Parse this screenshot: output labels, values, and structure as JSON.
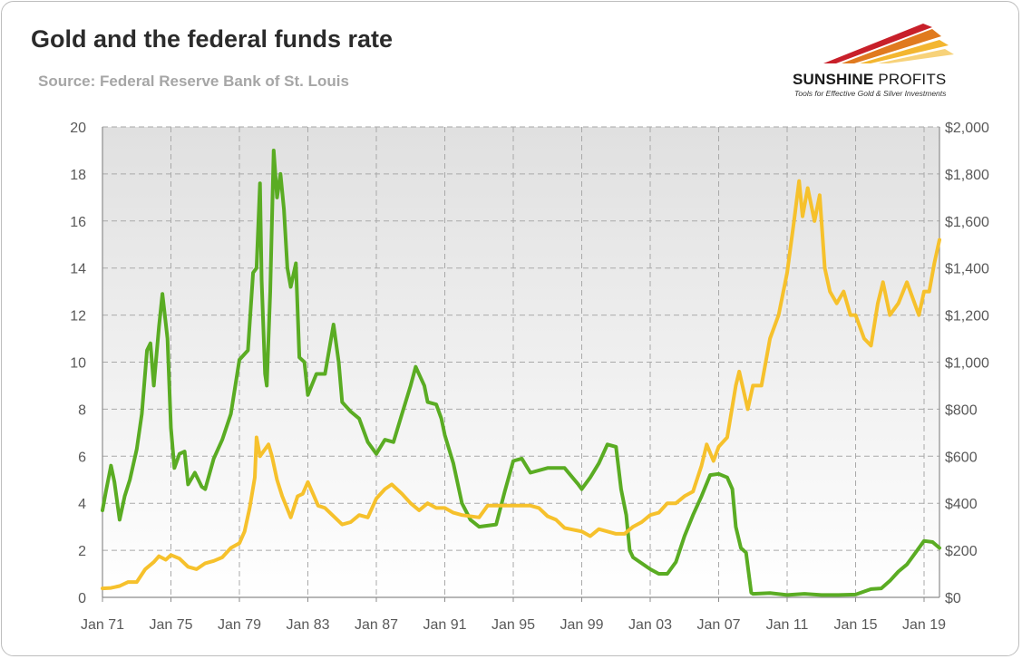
{
  "header": {
    "title": "Gold and the federal funds rate",
    "source": "Source: Federal Reserve Bank of St. Louis"
  },
  "logo": {
    "name_bold": "SUNSHINE",
    "name_light": " PROFITS",
    "tagline": "Tools for Effective Gold & Silver Investments"
  },
  "chart_data": {
    "type": "line",
    "title": "Gold and the federal funds rate",
    "xlim": [
      1971,
      2019.9
    ],
    "x_ticks": [
      "Jan 71",
      "Jan 75",
      "Jan 79",
      "Jan 83",
      "Jan 87",
      "Jan 91",
      "Jan 95",
      "Jan 99",
      "Jan 03",
      "Jan 07",
      "Jan 11",
      "Jan 15",
      "Jan 19"
    ],
    "x_tick_years": [
      1971,
      1975,
      1979,
      1983,
      1987,
      1991,
      1995,
      1999,
      2003,
      2007,
      2011,
      2015,
      2019
    ],
    "y_left": {
      "ylim": [
        0,
        20
      ],
      "ticks": [
        "0",
        "2",
        "4",
        "6",
        "8",
        "10",
        "12",
        "14",
        "16",
        "18",
        "20"
      ]
    },
    "y_right": {
      "ylim": [
        0,
        2000
      ],
      "ticks": [
        "$0",
        "$200",
        "$400",
        "$600",
        "$800",
        "$1,000",
        "$1,200",
        "$1,400",
        "$1,600",
        "$1,800",
        "$2,000"
      ]
    },
    "grid": true,
    "colors": {
      "fed_funds": "#5aac23",
      "gold": "#f6c12c",
      "plot_bg_top": "#e0e0e0",
      "plot_bg_bottom": "#ffffff"
    },
    "series": [
      {
        "axis": "left",
        "color": "#5aac23",
        "x": [
          1971.0,
          1971.2,
          1971.5,
          1971.7,
          1972.0,
          1972.3,
          1972.6,
          1973.0,
          1973.3,
          1973.6,
          1973.8,
          1974.0,
          1974.3,
          1974.5,
          1974.8,
          1975.0,
          1975.2,
          1975.5,
          1975.8,
          1976.0,
          1976.4,
          1976.8,
          1977.0,
          1977.5,
          1978.0,
          1978.5,
          1979.0,
          1979.5,
          1979.8,
          1980.0,
          1980.2,
          1980.3,
          1980.5,
          1980.6,
          1980.8,
          1981.0,
          1981.2,
          1981.4,
          1981.6,
          1981.8,
          1982.0,
          1982.3,
          1982.5,
          1982.8,
          1983.0,
          1983.5,
          1984.0,
          1984.5,
          1984.8,
          1985.0,
          1985.5,
          1986.0,
          1986.5,
          1987.0,
          1987.5,
          1988.0,
          1988.5,
          1989.0,
          1989.3,
          1989.8,
          1990.0,
          1990.5,
          1990.8,
          1991.0,
          1991.5,
          1992.0,
          1992.5,
          1993.0,
          1994.0,
          1994.5,
          1995.0,
          1995.5,
          1996.0,
          1997.0,
          1998.0,
          1998.8,
          1999.0,
          1999.5,
          2000.0,
          2000.5,
          2001.0,
          2001.3,
          2001.6,
          2001.8,
          2002.0,
          2003.0,
          2003.5,
          2004.0,
          2004.5,
          2005.0,
          2005.5,
          2006.0,
          2006.5,
          2007.0,
          2007.5,
          2007.8,
          2008.0,
          2008.3,
          2008.6,
          2008.9,
          2009.0,
          2010.0,
          2011.0,
          2012.0,
          2013.0,
          2014.0,
          2015.0,
          2015.9,
          2016.5,
          2017.0,
          2017.5,
          2018.0,
          2018.5,
          2019.0,
          2019.5,
          2019.9
        ],
        "values": [
          3.7,
          4.5,
          5.6,
          4.9,
          3.3,
          4.3,
          5.0,
          6.3,
          7.8,
          10.5,
          10.8,
          9.0,
          11.5,
          12.9,
          11.0,
          7.2,
          5.5,
          6.1,
          6.2,
          4.8,
          5.3,
          4.7,
          4.6,
          5.9,
          6.7,
          7.8,
          10.1,
          10.5,
          13.8,
          14.0,
          17.6,
          13.5,
          9.5,
          9.0,
          13.0,
          19.0,
          17.0,
          18.0,
          16.5,
          14.0,
          13.2,
          14.2,
          10.2,
          10.0,
          8.6,
          9.5,
          9.5,
          11.6,
          10.0,
          8.3,
          7.9,
          7.6,
          6.6,
          6.1,
          6.7,
          6.6,
          7.8,
          9.0,
          9.8,
          9.0,
          8.3,
          8.2,
          7.6,
          6.9,
          5.7,
          4.0,
          3.3,
          3.0,
          3.1,
          4.5,
          5.8,
          5.9,
          5.3,
          5.5,
          5.5,
          4.8,
          4.6,
          5.1,
          5.7,
          6.5,
          6.4,
          4.6,
          3.5,
          2.0,
          1.7,
          1.2,
          1.0,
          1.0,
          1.5,
          2.6,
          3.5,
          4.3,
          5.2,
          5.25,
          5.1,
          4.6,
          3.0,
          2.1,
          1.9,
          0.2,
          0.15,
          0.18,
          0.1,
          0.15,
          0.1,
          0.1,
          0.12,
          0.35,
          0.38,
          0.7,
          1.1,
          1.4,
          1.9,
          2.4,
          2.35,
          2.1
        ]
      },
      {
        "axis": "right",
        "color": "#f6c12c",
        "x": [
          1971.0,
          1971.5,
          1972.0,
          1972.5,
          1973.0,
          1973.5,
          1974.0,
          1974.3,
          1974.7,
          1975.0,
          1975.5,
          1976.0,
          1976.5,
          1977.0,
          1977.5,
          1978.0,
          1978.5,
          1979.0,
          1979.3,
          1979.6,
          1979.9,
          1980.0,
          1980.2,
          1980.4,
          1980.7,
          1980.9,
          1981.2,
          1981.5,
          1982.0,
          1982.4,
          1982.7,
          1983.0,
          1983.3,
          1983.6,
          1984.0,
          1985.0,
          1985.5,
          1986.0,
          1986.5,
          1987.0,
          1987.5,
          1987.9,
          1988.5,
          1989.0,
          1989.5,
          1990.0,
          1990.5,
          1991.0,
          1991.5,
          1992.0,
          1993.0,
          1993.5,
          1994.0,
          1995.0,
          1996.0,
          1996.5,
          1997.0,
          1997.5,
          1998.0,
          1999.0,
          1999.5,
          2000.0,
          2000.5,
          2001.0,
          2001.5,
          2002.0,
          2002.5,
          2003.0,
          2003.5,
          2004.0,
          2004.5,
          2005.0,
          2005.5,
          2006.0,
          2006.3,
          2006.7,
          2007.0,
          2007.5,
          2008.0,
          2008.2,
          2008.7,
          2009.0,
          2009.5,
          2010.0,
          2010.5,
          2011.0,
          2011.4,
          2011.7,
          2011.9,
          2012.2,
          2012.6,
          2012.9,
          2013.2,
          2013.5,
          2013.9,
          2014.3,
          2014.7,
          2015.0,
          2015.5,
          2015.9,
          2016.3,
          2016.6,
          2017.0,
          2017.5,
          2018.0,
          2018.7,
          2019.0,
          2019.3,
          2019.6,
          2019.9
        ],
        "values": [
          38,
          40,
          48,
          65,
          65,
          120,
          150,
          175,
          160,
          180,
          165,
          130,
          120,
          145,
          155,
          170,
          210,
          230,
          280,
          380,
          510,
          680,
          600,
          620,
          650,
          600,
          500,
          430,
          340,
          430,
          440,
          490,
          440,
          390,
          380,
          310,
          320,
          350,
          340,
          420,
          460,
          480,
          440,
          400,
          370,
          400,
          380,
          380,
          360,
          350,
          340,
          390,
          390,
          390,
          390,
          380,
          345,
          330,
          295,
          280,
          260,
          290,
          280,
          270,
          270,
          300,
          320,
          350,
          360,
          400,
          400,
          430,
          450,
          560,
          650,
          580,
          640,
          680,
          900,
          960,
          800,
          900,
          900,
          1100,
          1200,
          1380,
          1600,
          1770,
          1620,
          1740,
          1600,
          1710,
          1400,
          1300,
          1250,
          1300,
          1200,
          1200,
          1100,
          1070,
          1250,
          1340,
          1200,
          1250,
          1340,
          1200,
          1300,
          1300,
          1420,
          1520
        ]
      }
    ]
  }
}
